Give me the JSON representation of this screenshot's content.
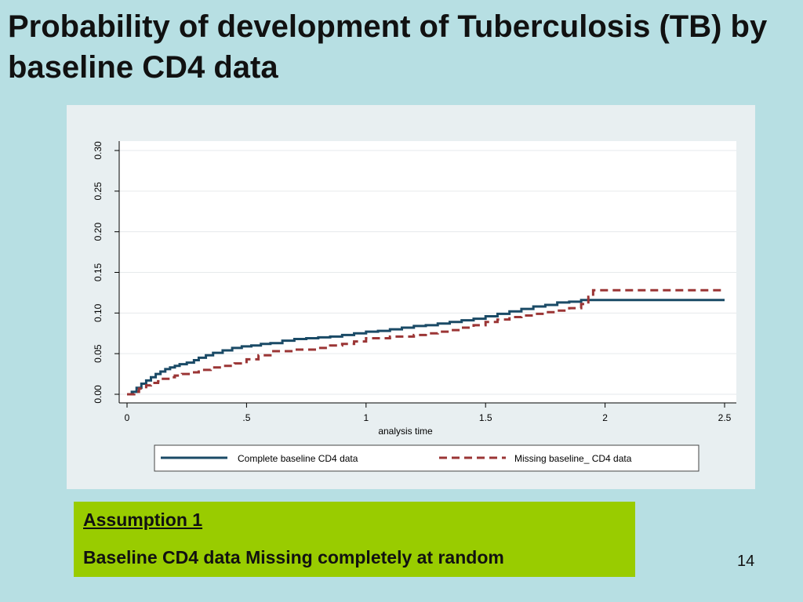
{
  "slide": {
    "title": "Probability of development of Tuberculosis (TB) by baseline CD4 data",
    "assumption_heading": "Assumption 1",
    "assumption_text": "Baseline CD4 data Missing completely at random",
    "page_number": "14"
  },
  "colors": {
    "background": "#b7dfe3",
    "panel": "#e8eff1",
    "complete_series": "#1a4a66",
    "missing_series": "#9b3535",
    "callout": "#99cc00"
  },
  "chart_data": {
    "type": "line",
    "xlabel": "analysis time",
    "ylabel": "",
    "xlim": [
      0,
      2.5
    ],
    "ylim": [
      0,
      0.3
    ],
    "x_ticks": [
      {
        "value": 0,
        "label": "0"
      },
      {
        "value": 0.5,
        "label": ".5"
      },
      {
        "value": 1,
        "label": "1"
      },
      {
        "value": 1.5,
        "label": "1.5"
      },
      {
        "value": 2,
        "label": "2"
      },
      {
        "value": 2.5,
        "label": "2.5"
      }
    ],
    "y_ticks": [
      {
        "value": 0,
        "label": "0.00"
      },
      {
        "value": 0.05,
        "label": "0.05"
      },
      {
        "value": 0.1,
        "label": "0.10"
      },
      {
        "value": 0.15,
        "label": "0.15"
      },
      {
        "value": 0.2,
        "label": "0.20"
      },
      {
        "value": 0.25,
        "label": "0.25"
      },
      {
        "value": 0.3,
        "label": "0.30"
      }
    ],
    "grid": "horizontal",
    "legend_position": "bottom",
    "series": [
      {
        "name": "Complete baseline CD4 data",
        "style": "solid",
        "x": [
          0,
          0.02,
          0.04,
          0.06,
          0.08,
          0.1,
          0.12,
          0.14,
          0.16,
          0.18,
          0.2,
          0.22,
          0.25,
          0.28,
          0.3,
          0.33,
          0.36,
          0.4,
          0.44,
          0.48,
          0.52,
          0.56,
          0.6,
          0.65,
          0.7,
          0.75,
          0.8,
          0.85,
          0.9,
          0.95,
          1.0,
          1.05,
          1.1,
          1.15,
          1.2,
          1.25,
          1.3,
          1.35,
          1.4,
          1.45,
          1.5,
          1.55,
          1.6,
          1.65,
          1.7,
          1.75,
          1.8,
          1.85,
          1.9,
          1.95,
          2.0,
          2.1,
          2.2,
          2.3,
          2.4,
          2.5
        ],
        "y": [
          0,
          0.003,
          0.008,
          0.013,
          0.017,
          0.021,
          0.025,
          0.028,
          0.031,
          0.033,
          0.035,
          0.037,
          0.039,
          0.042,
          0.045,
          0.048,
          0.051,
          0.054,
          0.057,
          0.059,
          0.06,
          0.062,
          0.063,
          0.066,
          0.068,
          0.069,
          0.07,
          0.071,
          0.073,
          0.075,
          0.077,
          0.078,
          0.08,
          0.082,
          0.084,
          0.085,
          0.087,
          0.089,
          0.091,
          0.093,
          0.096,
          0.099,
          0.102,
          0.105,
          0.108,
          0.11,
          0.113,
          0.114,
          0.116,
          0.116,
          0.116,
          0.116,
          0.116,
          0.116,
          0.116,
          0.116
        ]
      },
      {
        "name": "Missing baseline_ CD4 data",
        "style": "dashed",
        "x": [
          0,
          0.03,
          0.05,
          0.08,
          0.1,
          0.13,
          0.15,
          0.18,
          0.2,
          0.23,
          0.27,
          0.3,
          0.35,
          0.4,
          0.45,
          0.5,
          0.55,
          0.6,
          0.7,
          0.8,
          0.85,
          0.9,
          0.95,
          1.0,
          1.1,
          1.2,
          1.25,
          1.3,
          1.35,
          1.4,
          1.45,
          1.5,
          1.55,
          1.6,
          1.65,
          1.7,
          1.75,
          1.8,
          1.85,
          1.9,
          1.93,
          1.95,
          2.0,
          2.1,
          2.2,
          2.3,
          2.4,
          2.5
        ],
        "y": [
          0,
          0.003,
          0.007,
          0.011,
          0.014,
          0.016,
          0.019,
          0.021,
          0.023,
          0.025,
          0.027,
          0.03,
          0.033,
          0.035,
          0.038,
          0.043,
          0.048,
          0.053,
          0.055,
          0.057,
          0.06,
          0.062,
          0.065,
          0.069,
          0.071,
          0.073,
          0.075,
          0.077,
          0.079,
          0.082,
          0.085,
          0.089,
          0.092,
          0.095,
          0.097,
          0.099,
          0.101,
          0.103,
          0.106,
          0.111,
          0.12,
          0.128,
          0.128,
          0.128,
          0.128,
          0.128,
          0.128,
          0.128
        ]
      }
    ]
  }
}
